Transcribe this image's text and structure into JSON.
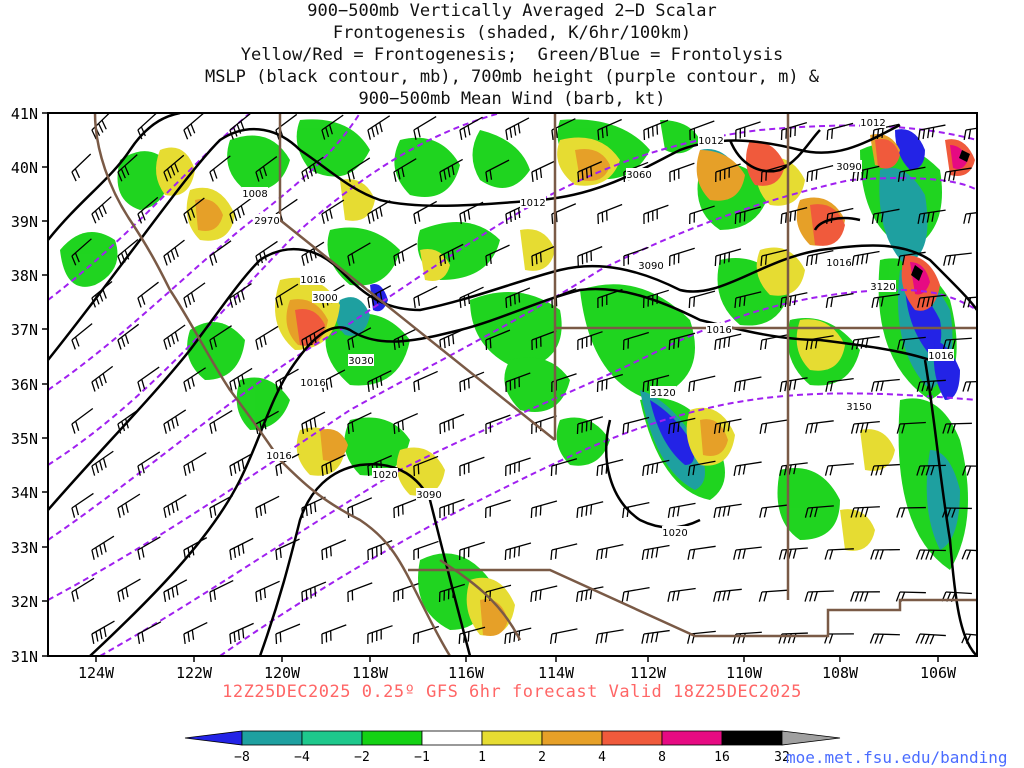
{
  "title_lines": [
    "900−500mb Vertically Averaged 2−D Scalar",
    "Frontogenesis (shaded, K/6hr/100km)",
    "Yellow/Red = Frontogenesis;  Green/Blue = Frontolysis",
    "MSLP (black contour, mb), 700mb height (purple contour, m) &",
    "900−500mb Mean Wind (barb, kt)"
  ],
  "valid_line": "12Z25DEC2025 0.25º GFS 6hr forecast Valid 18Z25DEC2025",
  "credit": "moe.met.fsu.edu/banding",
  "map": {
    "lon_labels": [
      "124W",
      "122W",
      "120W",
      "118W",
      "116W",
      "114W",
      "112W",
      "110W",
      "108W",
      "106W"
    ],
    "lat_labels": [
      "41N",
      "40N",
      "39N",
      "38N",
      "37N",
      "36N",
      "35N",
      "34N",
      "33N",
      "32N",
      "31N"
    ],
    "mslp_labels": [
      "1008",
      "1012",
      "1012",
      "1012",
      "1016",
      "1016",
      "1016",
      "1016",
      "1016",
      "1016",
      "1020",
      "1020"
    ],
    "height_labels": [
      "2970",
      "3000",
      "3030",
      "3060",
      "3090",
      "3090",
      "3120",
      "3120",
      "3150",
      "3090"
    ]
  },
  "colorbar": {
    "ticks": [
      "−8",
      "−4",
      "−2",
      "−1",
      "1",
      "2",
      "4",
      "8",
      "16",
      "32"
    ],
    "colors": [
      "#2323e6",
      "#1ea0a0",
      "#1ec88c",
      "#14d214",
      "#ffffff",
      "#e6dc32",
      "#e6a028",
      "#f05a3c",
      "#e60a82",
      "#000000",
      "#a0a0a0"
    ]
  },
  "colors": {
    "mslp": "#000000",
    "height": "#a020f0",
    "border": "#7a5a46",
    "valid_text": "#ff6666"
  }
}
